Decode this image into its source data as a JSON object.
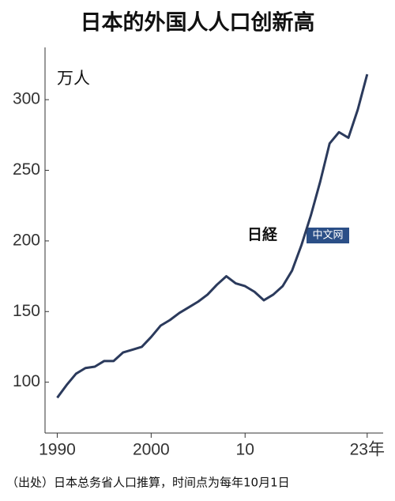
{
  "chart_data": {
    "type": "line",
    "title": "日本的外国人人口创新高",
    "y_unit": "万人",
    "source": "（出处）日本总务省人口推算，时间点为每年10月1日",
    "watermark": {
      "mark": "日経",
      "text": "中文网"
    },
    "x": [
      1990,
      1991,
      1992,
      1993,
      1994,
      1995,
      1996,
      1997,
      1998,
      1999,
      2000,
      2001,
      2002,
      2003,
      2004,
      2005,
      2006,
      2007,
      2008,
      2009,
      2010,
      2011,
      2012,
      2013,
      2014,
      2015,
      2016,
      2017,
      2018,
      2019,
      2020,
      2021,
      2022,
      2023
    ],
    "series": [
      {
        "name": "外国人人口",
        "color": "#2b3a5c",
        "values": [
          89,
          98,
          106,
          110,
          111,
          115,
          115,
          121,
          123,
          125,
          132,
          140,
          144,
          149,
          153,
          157,
          162,
          169,
          175,
          170,
          168,
          164,
          158,
          162,
          168,
          179,
          197,
          218,
          242,
          269,
          277,
          273,
          293,
          318
        ]
      }
    ],
    "xlim": [
      1988.7,
      2024.7
    ],
    "xticks": [
      1990,
      2000,
      {
        "value": 2010,
        "label": "10"
      },
      {
        "value": 2023,
        "label": "23年"
      }
    ],
    "ylim": [
      64,
      337
    ],
    "yticks": [
      100,
      150,
      200,
      250,
      300
    ],
    "grid": false
  }
}
